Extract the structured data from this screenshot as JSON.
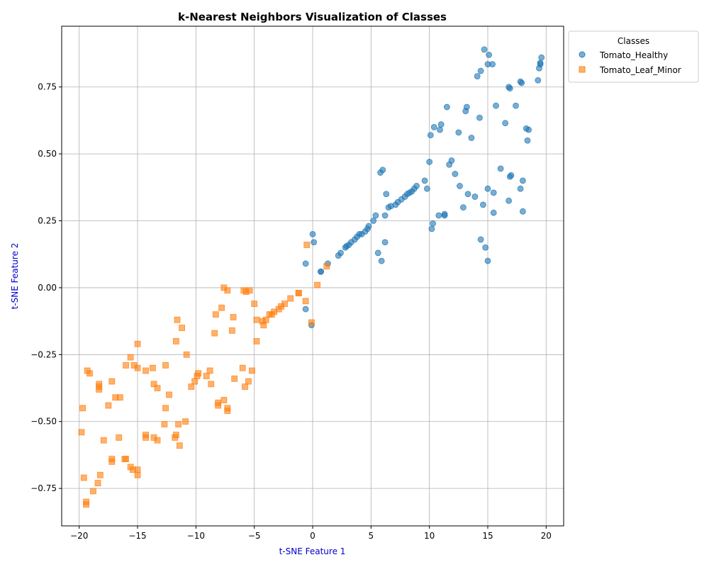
{
  "chart_data": {
    "type": "scatter",
    "title": "k-Nearest Neighbors Visualization of Classes",
    "xlabel": "t-SNE Feature 1",
    "ylabel": "t-SNE Feature 2",
    "xlim": [
      -21.5,
      21.5
    ],
    "ylim": [
      -0.89,
      0.977
    ],
    "xticks": [
      -20,
      -15,
      -10,
      -5,
      0,
      5,
      10,
      15,
      20
    ],
    "yticks": [
      -0.75,
      -0.5,
      -0.25,
      0.0,
      0.25,
      0.5,
      0.75
    ],
    "ytick_labels": [
      "−0.75",
      "−0.50",
      "−0.25",
      "0.00",
      "0.25",
      "0.50",
      "0.75"
    ],
    "xtick_labels": [
      "−20",
      "−15",
      "−10",
      "−5",
      "0",
      "5",
      "10",
      "15",
      "20"
    ],
    "grid": true,
    "legend": {
      "title": "Classes",
      "placement": "outside-top-right"
    },
    "series": [
      {
        "name": "Tomato_Healthy",
        "color": "#1f77b4",
        "marker": "circle",
        "points": [
          [
            -0.6,
            0.09
          ],
          [
            0.0,
            0.2
          ],
          [
            0.1,
            0.17
          ],
          [
            -0.6,
            -0.08
          ],
          [
            -0.1,
            -0.14
          ],
          [
            0.7,
            0.06
          ],
          [
            0.7,
            0.06
          ],
          [
            1.3,
            0.09
          ],
          [
            2.2,
            0.12
          ],
          [
            2.4,
            0.13
          ],
          [
            2.8,
            0.15
          ],
          [
            2.9,
            0.155
          ],
          [
            3.1,
            0.16
          ],
          [
            3.3,
            0.17
          ],
          [
            3.6,
            0.18
          ],
          [
            3.8,
            0.19
          ],
          [
            4.0,
            0.2
          ],
          [
            4.2,
            0.2
          ],
          [
            4.5,
            0.21
          ],
          [
            4.7,
            0.22
          ],
          [
            4.8,
            0.23
          ],
          [
            5.2,
            0.25
          ],
          [
            5.4,
            0.27
          ],
          [
            5.6,
            0.13
          ],
          [
            5.9,
            0.1
          ],
          [
            6.2,
            0.17
          ],
          [
            6.2,
            0.27
          ],
          [
            6.3,
            0.35
          ],
          [
            6.5,
            0.3
          ],
          [
            6.7,
            0.305
          ],
          [
            7.1,
            0.31
          ],
          [
            7.3,
            0.32
          ],
          [
            7.6,
            0.33
          ],
          [
            7.9,
            0.34
          ],
          [
            8.1,
            0.35
          ],
          [
            8.3,
            0.355
          ],
          [
            8.5,
            0.36
          ],
          [
            8.7,
            0.37
          ],
          [
            8.9,
            0.38
          ],
          [
            5.8,
            0.43
          ],
          [
            6.0,
            0.44
          ],
          [
            9.6,
            0.4
          ],
          [
            9.8,
            0.37
          ],
          [
            10.0,
            0.47
          ],
          [
            10.1,
            0.57
          ],
          [
            10.2,
            0.22
          ],
          [
            10.3,
            0.24
          ],
          [
            10.4,
            0.6
          ],
          [
            10.8,
            0.27
          ],
          [
            10.9,
            0.59
          ],
          [
            11.0,
            0.61
          ],
          [
            11.3,
            0.27
          ],
          [
            11.3,
            0.275
          ],
          [
            11.5,
            0.675
          ],
          [
            11.7,
            0.46
          ],
          [
            11.9,
            0.475
          ],
          [
            12.2,
            0.425
          ],
          [
            12.5,
            0.58
          ],
          [
            12.6,
            0.38
          ],
          [
            12.9,
            0.3
          ],
          [
            13.1,
            0.66
          ],
          [
            13.2,
            0.675
          ],
          [
            13.3,
            0.35
          ],
          [
            13.6,
            0.56
          ],
          [
            13.9,
            0.34
          ],
          [
            14.1,
            0.79
          ],
          [
            14.3,
            0.635
          ],
          [
            14.4,
            0.81
          ],
          [
            14.4,
            0.18
          ],
          [
            14.6,
            0.31
          ],
          [
            14.7,
            0.89
          ],
          [
            14.8,
            0.15
          ],
          [
            15.0,
            0.1
          ],
          [
            15.0,
            0.835
          ],
          [
            15.0,
            0.37
          ],
          [
            15.1,
            0.87
          ],
          [
            15.4,
            0.835
          ],
          [
            15.5,
            0.28
          ],
          [
            15.5,
            0.355
          ],
          [
            15.7,
            0.68
          ],
          [
            16.1,
            0.445
          ],
          [
            16.5,
            0.615
          ],
          [
            16.8,
            0.325
          ],
          [
            16.8,
            0.75
          ],
          [
            16.9,
            0.745
          ],
          [
            16.9,
            0.415
          ],
          [
            17.0,
            0.42
          ],
          [
            17.4,
            0.68
          ],
          [
            17.8,
            0.37
          ],
          [
            17.8,
            0.77
          ],
          [
            17.9,
            0.765
          ],
          [
            18.0,
            0.4
          ],
          [
            18.0,
            0.285
          ],
          [
            18.3,
            0.595
          ],
          [
            18.4,
            0.55
          ],
          [
            18.5,
            0.59
          ],
          [
            19.3,
            0.775
          ],
          [
            19.4,
            0.82
          ],
          [
            19.5,
            0.84
          ],
          [
            19.5,
            0.835
          ],
          [
            19.6,
            0.86
          ]
        ]
      },
      {
        "name": "Tomato_Leaf_Minor",
        "color": "#ff7f0e",
        "marker": "square",
        "points": [
          [
            -0.5,
            0.16
          ],
          [
            1.2,
            0.08
          ],
          [
            0.4,
            0.01
          ],
          [
            -0.6,
            -0.05
          ],
          [
            -0.1,
            -0.13
          ],
          [
            -1.2,
            -0.02
          ],
          [
            -1.2,
            -0.02
          ],
          [
            -1.9,
            -0.04
          ],
          [
            -2.4,
            -0.06
          ],
          [
            -2.7,
            -0.07
          ],
          [
            -2.9,
            -0.08
          ],
          [
            -3.3,
            -0.09
          ],
          [
            -3.5,
            -0.1
          ],
          [
            -3.7,
            -0.1
          ],
          [
            -4.0,
            -0.12
          ],
          [
            -4.2,
            -0.14
          ],
          [
            -4.3,
            -0.125
          ],
          [
            -4.8,
            -0.12
          ],
          [
            -4.8,
            -0.2
          ],
          [
            -5.0,
            -0.06
          ],
          [
            -5.4,
            -0.01
          ],
          [
            -5.7,
            -0.015
          ],
          [
            -5.9,
            -0.01
          ],
          [
            -5.2,
            -0.31
          ],
          [
            -5.5,
            -0.35
          ],
          [
            -5.8,
            -0.37
          ],
          [
            -6.0,
            -0.3
          ],
          [
            -6.8,
            -0.11
          ],
          [
            -6.9,
            -0.16
          ],
          [
            -6.7,
            -0.34
          ],
          [
            -7.3,
            -0.01
          ],
          [
            -7.6,
            -0.0
          ],
          [
            -7.8,
            -0.075
          ],
          [
            -8.3,
            -0.1
          ],
          [
            -8.4,
            -0.17
          ],
          [
            -7.3,
            -0.45
          ],
          [
            -7.3,
            -0.46
          ],
          [
            -7.6,
            -0.42
          ],
          [
            -8.1,
            -0.43
          ],
          [
            -8.1,
            -0.44
          ],
          [
            -8.7,
            -0.36
          ],
          [
            -8.8,
            -0.31
          ],
          [
            -9.1,
            -0.33
          ],
          [
            -9.8,
            -0.32
          ],
          [
            -9.9,
            -0.33
          ],
          [
            -10.1,
            -0.35
          ],
          [
            -10.4,
            -0.37
          ],
          [
            -10.8,
            -0.25
          ],
          [
            -10.9,
            -0.5
          ],
          [
            -11.2,
            -0.15
          ],
          [
            -11.4,
            -0.59
          ],
          [
            -11.5,
            -0.51
          ],
          [
            -11.6,
            -0.12
          ],
          [
            -11.7,
            -0.2
          ],
          [
            -11.7,
            -0.55
          ],
          [
            -11.8,
            -0.56
          ],
          [
            -12.3,
            -0.4
          ],
          [
            -12.6,
            -0.29
          ],
          [
            -12.6,
            -0.45
          ],
          [
            -12.7,
            -0.51
          ],
          [
            -13.3,
            -0.57
          ],
          [
            -13.3,
            -0.375
          ],
          [
            -13.6,
            -0.36
          ],
          [
            -13.7,
            -0.3
          ],
          [
            -13.6,
            -0.56
          ],
          [
            -14.3,
            -0.31
          ],
          [
            -14.3,
            -0.55
          ],
          [
            -14.3,
            -0.56
          ],
          [
            -15.0,
            -0.21
          ],
          [
            -15.0,
            -0.3
          ],
          [
            -15.3,
            -0.29
          ],
          [
            -15.6,
            -0.26
          ],
          [
            -15.4,
            -0.68
          ],
          [
            -15.6,
            -0.67
          ],
          [
            -15.0,
            -0.68
          ],
          [
            -15.0,
            -0.7
          ],
          [
            -16.0,
            -0.29
          ],
          [
            -16.0,
            -0.64
          ],
          [
            -16.1,
            -0.64
          ],
          [
            -16.5,
            -0.41
          ],
          [
            -16.6,
            -0.56
          ],
          [
            -16.9,
            -0.41
          ],
          [
            -17.2,
            -0.35
          ],
          [
            -17.2,
            -0.64
          ],
          [
            -17.2,
            -0.65
          ],
          [
            -17.5,
            -0.44
          ],
          [
            -17.9,
            -0.57
          ],
          [
            -18.3,
            -0.36
          ],
          [
            -18.3,
            -0.37
          ],
          [
            -18.3,
            -0.38
          ],
          [
            -18.2,
            -0.7
          ],
          [
            -18.4,
            -0.73
          ],
          [
            -18.8,
            -0.76
          ],
          [
            -19.1,
            -0.32
          ],
          [
            -19.3,
            -0.31
          ],
          [
            -19.4,
            -0.8
          ],
          [
            -19.4,
            -0.81
          ],
          [
            -19.6,
            -0.71
          ],
          [
            -19.7,
            -0.45
          ],
          [
            -19.8,
            -0.54
          ]
        ]
      }
    ]
  }
}
